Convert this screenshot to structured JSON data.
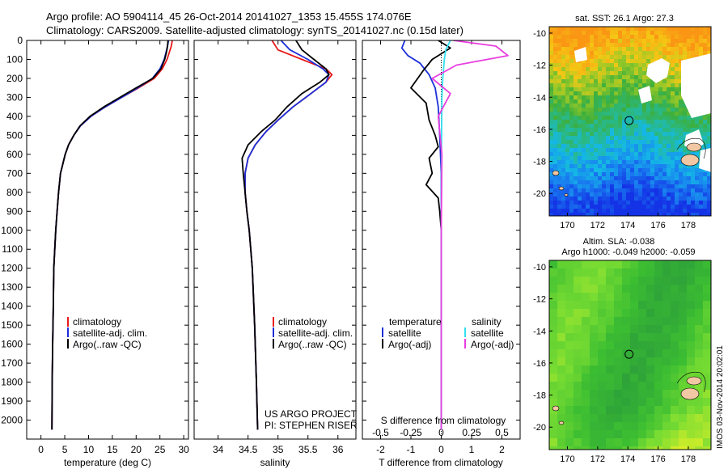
{
  "header": {
    "line1": "Argo profile: AO 5904114_45 26-Oct-2014 20141027_1353 15.455S 174.076E",
    "line2": "Climatology: CARS2009. Satellite-adjusted climatology: synTS_20141027.nc (0.15d later)"
  },
  "colors": {
    "climatology": "#e8181a",
    "satellite": "#1c2fd9",
    "argo": "#000000",
    "sat_salinity": "#33e0f0",
    "argo_salinity": "#e83ee0"
  },
  "credit": {
    "line1": "US ARGO PROJECT",
    "line2": "PI: STEPHEN RISER"
  },
  "timestamp": "IMOS 03-Nov-2014 20:02:01",
  "chart_data": [
    {
      "type": "line",
      "xlabel": "temperature (deg C)",
      "ylabel": "",
      "xlim": [
        -3,
        31
      ],
      "ylim": [
        2100,
        0
      ],
      "xticks": [
        0,
        5,
        10,
        15,
        20,
        25,
        30
      ],
      "yticks": [
        0,
        100,
        200,
        300,
        400,
        500,
        600,
        700,
        800,
        900,
        1000,
        1100,
        1200,
        1300,
        1400,
        1500,
        1600,
        1700,
        1800,
        1900,
        2000
      ],
      "legend": [
        "climatology",
        "satellite-adj. clim.",
        "Argo(..raw -QC)"
      ],
      "series": [
        {
          "name": "climatology",
          "color": "#e8181a",
          "x": [
            27.6,
            27.4,
            27.0,
            26.5,
            25.5,
            23.8,
            20.5,
            17.0,
            13.5,
            10.5,
            8.3,
            6.9,
            5.8,
            5.1,
            4.6,
            4.1,
            3.7,
            3.4,
            3.1,
            2.9,
            2.7,
            2.6,
            2.45,
            2.35,
            2.3
          ],
          "y": [
            0,
            30,
            60,
            100,
            150,
            200,
            250,
            300,
            350,
            400,
            450,
            500,
            550,
            600,
            650,
            700,
            800,
            900,
            1000,
            1100,
            1200,
            1400,
            1600,
            1800,
            2050
          ]
        },
        {
          "name": "satellite-adj. clim.",
          "color": "#1c2fd9",
          "x": [
            26.8,
            26.6,
            26.3,
            25.9,
            25.0,
            23.4,
            20.3,
            17.0,
            13.5,
            10.5,
            8.3,
            6.9,
            5.8,
            5.1,
            4.6,
            4.1,
            3.7,
            3.4,
            3.1,
            2.9,
            2.7,
            2.6,
            2.45,
            2.35,
            2.3
          ],
          "y": [
            0,
            30,
            60,
            100,
            150,
            200,
            250,
            300,
            350,
            400,
            450,
            500,
            550,
            600,
            650,
            700,
            800,
            900,
            1000,
            1100,
            1200,
            1400,
            1600,
            1800,
            2050
          ]
        },
        {
          "name": "Argo(..raw -QC)",
          "color": "#000000",
          "x": [
            26.7,
            26.6,
            26.4,
            26.0,
            25.2,
            23.5,
            20.0,
            16.6,
            13.2,
            10.3,
            8.2,
            6.9,
            5.8,
            5.1,
            4.6,
            4.1,
            3.7,
            3.4,
            3.1,
            2.9,
            2.7,
            2.6,
            2.45,
            2.35,
            2.3
          ],
          "y": [
            0,
            30,
            60,
            100,
            150,
            200,
            250,
            300,
            350,
            400,
            450,
            500,
            550,
            600,
            650,
            700,
            800,
            900,
            1000,
            1100,
            1200,
            1400,
            1600,
            1800,
            2050
          ]
        }
      ]
    },
    {
      "type": "line",
      "xlabel": "salinity",
      "ylabel": "",
      "xlim": [
        33.6,
        36.3
      ],
      "ylim": [
        2100,
        0
      ],
      "xticks": [
        34,
        34.5,
        35,
        35.5,
        36
      ],
      "legend": [
        "climatology",
        "satellite-adj. clim.",
        "Argo(..raw -QC)"
      ],
      "series": [
        {
          "name": "climatology",
          "color": "#e8181a",
          "x": [
            34.9,
            35.0,
            35.4,
            35.8,
            35.9,
            35.8,
            35.55,
            35.25,
            35.0,
            34.8,
            34.62,
            34.5,
            34.45,
            34.45,
            34.48,
            34.52,
            34.57,
            34.61,
            34.64,
            34.66
          ],
          "y": [
            0,
            50,
            100,
            150,
            180,
            220,
            280,
            350,
            420,
            480,
            550,
            620,
            700,
            800,
            900,
            1000,
            1200,
            1500,
            1800,
            2050
          ]
        },
        {
          "name": "satellite-adj. clim.",
          "color": "#1c2fd9",
          "x": [
            35.05,
            35.2,
            35.5,
            35.75,
            35.85,
            35.8,
            35.55,
            35.25,
            35.0,
            34.8,
            34.62,
            34.5,
            34.45,
            34.45,
            34.48,
            34.52,
            34.57,
            34.61,
            34.64,
            34.66
          ],
          "y": [
            0,
            50,
            100,
            150,
            180,
            220,
            280,
            350,
            420,
            480,
            550,
            620,
            700,
            800,
            900,
            1000,
            1200,
            1500,
            1800,
            2050
          ]
        },
        {
          "name": "Argo(..raw -QC)",
          "color": "#000000",
          "x": [
            35.3,
            35.4,
            35.6,
            35.8,
            35.85,
            35.7,
            35.4,
            35.15,
            34.95,
            34.72,
            34.5,
            34.4,
            34.42,
            34.45,
            34.48,
            34.52,
            34.57,
            34.61,
            34.64,
            34.66
          ],
          "y": [
            0,
            50,
            100,
            150,
            180,
            220,
            280,
            350,
            420,
            480,
            550,
            620,
            700,
            800,
            900,
            1000,
            1200,
            1500,
            1800,
            2050
          ]
        }
      ]
    },
    {
      "type": "line",
      "xlabel": "T difference from climatology",
      "xlabel2": "S difference from climatology",
      "ylabel": "",
      "xlim": [
        -2.6,
        2.6
      ],
      "ylim": [
        2100,
        0
      ],
      "xticks": [
        -2,
        -1,
        0,
        1,
        2
      ],
      "xticks_top": [
        "-0.5",
        "-0.25",
        "0",
        "0.25",
        "0.5"
      ],
      "legend_groups": [
        {
          "title": "temperature",
          "entries": [
            "satellite",
            "Argo(-adj)"
          ]
        },
        {
          "title": "salinity",
          "entries": [
            "satellite",
            "Argo(-adj)"
          ]
        }
      ],
      "series": [
        {
          "name": "temperature satellite",
          "color": "#1c2fd9",
          "x": [
            -1.2,
            -1.3,
            -1.1,
            -0.7,
            -0.4,
            -0.2,
            -0.1,
            -0.05,
            0,
            0,
            0,
            0
          ],
          "y": [
            0,
            40,
            80,
            120,
            180,
            250,
            350,
            500,
            700,
            1000,
            1500,
            2050
          ]
        },
        {
          "name": "temperature Argo(-adj)",
          "color": "#000000",
          "x": [
            -0.1,
            0.3,
            -0.3,
            -0.6,
            -1.0,
            -0.5,
            -0.4,
            -0.2,
            -0.1,
            -0.4,
            -0.3,
            -0.5,
            -0.1,
            -0.05,
            0,
            0,
            0
          ],
          "y": [
            0,
            40,
            100,
            160,
            250,
            330,
            420,
            500,
            560,
            620,
            700,
            760,
            830,
            900,
            1000,
            1500,
            2050
          ]
        },
        {
          "name": "salinity satellite",
          "color": "#33e0f0",
          "x": [
            0.3,
            0.15,
            0.1,
            0.05,
            0.02,
            0.01,
            0,
            0
          ],
          "y": [
            0,
            50,
            100,
            200,
            300,
            500,
            1000,
            2050
          ]
        },
        {
          "name": "salinity Argo(-adj)",
          "color": "#e83ee0",
          "x": [
            0.4,
            1.8,
            2.2,
            0.5,
            -0.3,
            0.3,
            -0.1,
            0.02,
            0,
            0
          ],
          "y": [
            0,
            30,
            80,
            130,
            200,
            280,
            400,
            600,
            1000,
            2050
          ]
        }
      ]
    },
    {
      "type": "heatmap",
      "title": "sat. SST: 26.1  Argo: 27.3",
      "xlim": [
        168.8,
        179.5
      ],
      "ylim": [
        -21.4,
        -9.6
      ],
      "xticks": [
        170,
        172,
        174,
        176,
        178
      ],
      "yticks": [
        -10,
        -12,
        -14,
        -16,
        -18,
        -20
      ],
      "marker": {
        "lon": 174.08,
        "lat": -15.455
      }
    },
    {
      "type": "heatmap",
      "title": "Altim. SLA: -0.038",
      "subtitle": "Argo h1000: -0.049 h2000: -0.059",
      "xlim": [
        168.8,
        179.5
      ],
      "ylim": [
        -21.4,
        -9.6
      ],
      "xticks": [
        170,
        172,
        174,
        176,
        178
      ],
      "yticks": [
        -10,
        -12,
        -14,
        -16,
        -18,
        -20
      ],
      "marker": {
        "lon": 174.08,
        "lat": -15.455
      }
    }
  ]
}
